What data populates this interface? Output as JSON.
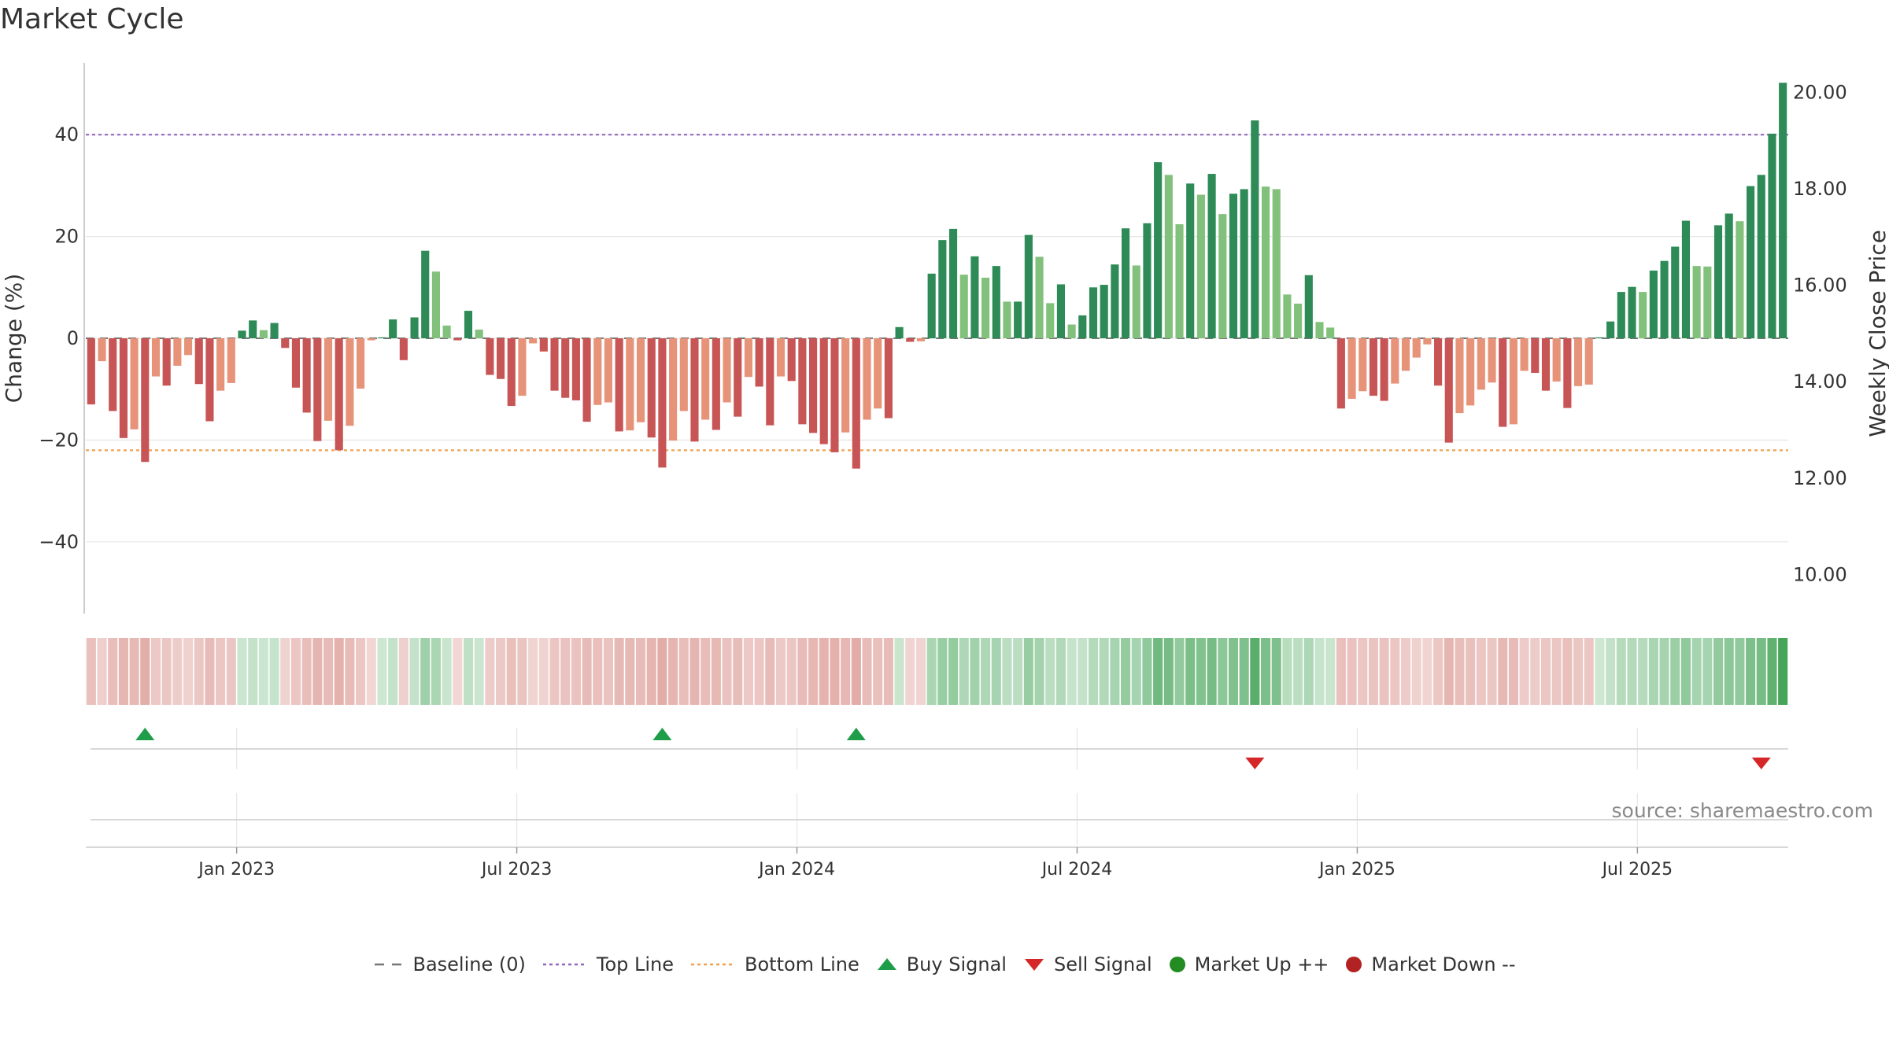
{
  "title": "Market Cycle",
  "source_text": "source: sharemaestro.com",
  "chart_data": {
    "type": "bar",
    "ylabel_left": "Change (%)",
    "ylabel_right": "Weekly Close Price",
    "ylim_left": [
      -54,
      54
    ],
    "ylim_right": [
      9.2,
      20.6
    ],
    "left_ticks": [
      40,
      20,
      0,
      -20,
      -40
    ],
    "left_tick_labels": [
      "40",
      "20",
      "0",
      "−20",
      "−40"
    ],
    "right_ticks": [
      20,
      18,
      16,
      14,
      12,
      10
    ],
    "right_tick_labels": [
      "20.00",
      "18.00",
      "16.00",
      "14.00",
      "12.00",
      "10.00"
    ],
    "top_line": 40,
    "bottom_line": -22,
    "x_tick_labels": [
      "Jan 2023",
      "Jul 2023",
      "Jan 2024",
      "Jul 2024",
      "Jan 2025",
      "Jul 2025"
    ],
    "x_tick_bar_index": [
      14,
      40,
      66,
      92,
      118,
      144
    ],
    "values": [
      -13,
      -4.5,
      -14.3,
      -19.6,
      -17.9,
      -24.3,
      -7.5,
      -9.3,
      -5.4,
      -3.3,
      -9,
      -16.3,
      -10.3,
      -8.8,
      1.5,
      3.5,
      1.6,
      3,
      -1.9,
      -9.7,
      -14.6,
      -20.2,
      -16.2,
      -22,
      -17.2,
      -9.9,
      -0.4,
      0,
      3.7,
      -4.3,
      4.1,
      17.2,
      13.1,
      2.5,
      -0.4,
      5.4,
      1.7,
      -7.2,
      -8,
      -13.3,
      -11.3,
      -1,
      -2.6,
      -10.3,
      -11.7,
      -12.2,
      -16.4,
      -13.1,
      -12.6,
      -18.3,
      -18.1,
      -16.5,
      -19.5,
      -25.4,
      -20.1,
      -14.3,
      -20.3,
      -16,
      -18,
      -12.6,
      -15.4,
      -7.6,
      -9.5,
      -17.1,
      -7.5,
      -8.4,
      -16.9,
      -18.6,
      -20.8,
      -22.4,
      -18.5,
      -25.6,
      -16,
      -13.8,
      -15.7,
      2.2,
      -0.7,
      -0.6,
      12.7,
      19.3,
      21.5,
      12.5,
      16.1,
      11.9,
      14.2,
      7.2,
      7.2,
      20.3,
      16,
      6.9,
      10.6,
      2.7,
      4.5,
      10,
      10.5,
      14.5,
      21.6,
      14.3,
      22.6,
      34.6,
      32.1,
      22.4,
      30.4,
      28.2,
      32.3,
      24.4,
      28.4,
      29.3,
      42.8,
      29.8,
      29.3,
      8.6,
      6.8,
      12.4,
      3.2,
      2.1,
      -13.8,
      -11.9,
      -10.4,
      -11.3,
      -12.3,
      -8.9,
      -6.4,
      -3.8,
      -1.2,
      -9.3,
      -20.5,
      -14.7,
      -13.2,
      -10.1,
      -8.7,
      -17.4,
      -16.9,
      -6.4,
      -6.8,
      -10.3,
      -8.5,
      -13.7,
      -9.4,
      -9.1,
      0,
      3.3,
      9.1,
      10.1,
      9.1,
      13.3,
      15.2,
      18,
      23.1,
      14.2,
      14.1,
      22.2,
      24.5,
      23,
      29.9,
      32.1,
      40.2,
      50.2
    ],
    "buy_signals_at_bar": [
      5,
      53,
      71
    ],
    "sell_signals_at_bar": [
      108,
      155
    ],
    "legend": [
      "Baseline (0)",
      "Top Line",
      "Bottom Line",
      "Buy Signal",
      "Sell Signal",
      "Market Up ++",
      "Market Down --"
    ],
    "colors": {
      "strong_up": "#2e8b57",
      "weak_up": "#82c17c",
      "strong_down": "#c85555",
      "weak_down": "#e6937a",
      "top_line": "#9467bd",
      "bottom_line": "#f0a050",
      "baseline": "#777777",
      "buy": "#1f9e4a",
      "sell": "#d62728",
      "market_up": "#228b22",
      "market_down": "#b22222"
    }
  }
}
